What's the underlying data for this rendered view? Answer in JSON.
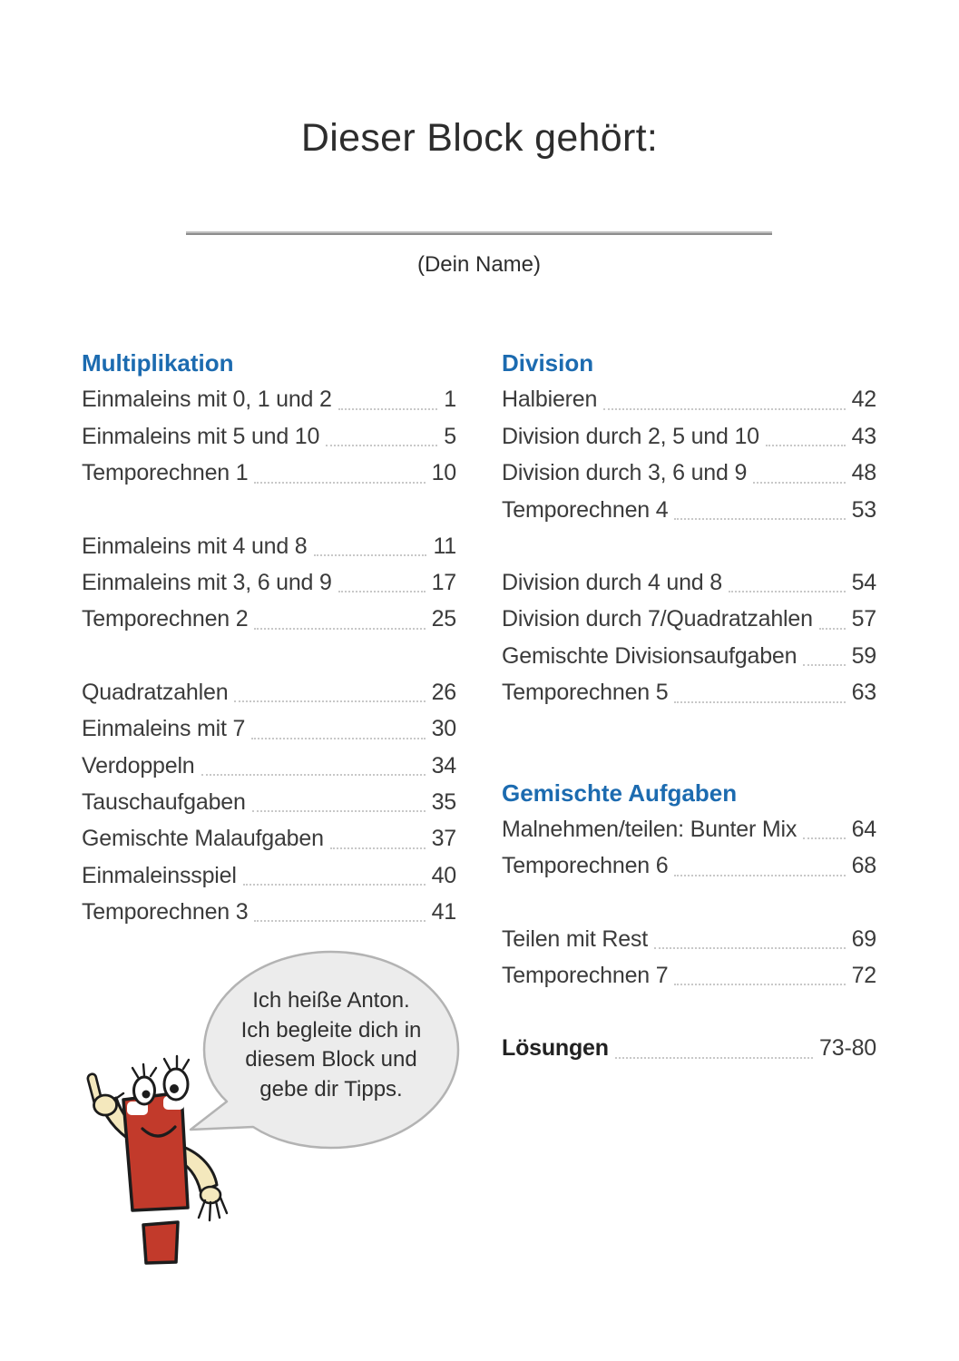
{
  "page": {
    "title": "Dieser Block gehört:",
    "name_caption": "(Dein Name)"
  },
  "toc": {
    "columns": [
      {
        "side": "left",
        "sections": [
          {
            "heading": "Multiplikation",
            "groups": [
              [
                {
                  "label": "Einmaleins mit 0, 1 und 2",
                  "page": "1"
                },
                {
                  "label": "Einmaleins mit 5 und 10",
                  "page": "5"
                },
                {
                  "label": "Temporechnen 1",
                  "page": "10"
                }
              ],
              [
                {
                  "label": "Einmaleins mit 4 und 8",
                  "page": "11"
                },
                {
                  "label": "Einmaleins mit 3, 6 und 9",
                  "page": "17"
                },
                {
                  "label": "Temporechnen 2",
                  "page": "25"
                }
              ],
              [
                {
                  "label": "Quadratzahlen",
                  "page": "26"
                },
                {
                  "label": "Einmaleins mit 7",
                  "page": "30"
                },
                {
                  "label": "Verdoppeln",
                  "page": "34"
                },
                {
                  "label": "Tauschaufgaben",
                  "page": "35"
                },
                {
                  "label": "Gemischte Malaufgaben",
                  "page": "37"
                },
                {
                  "label": "Einmaleinsspiel",
                  "page": "40"
                },
                {
                  "label": "Temporechnen 3",
                  "page": "41"
                }
              ]
            ]
          }
        ]
      },
      {
        "side": "right",
        "sections": [
          {
            "heading": "Division",
            "groups": [
              [
                {
                  "label": "Halbieren",
                  "page": "42"
                },
                {
                  "label": "Division durch 2, 5 und 10",
                  "page": "43"
                },
                {
                  "label": "Division durch 3, 6 und 9",
                  "page": "48"
                },
                {
                  "label": "Temporechnen 4",
                  "page": "53"
                }
              ],
              [
                {
                  "label": "Division durch 4 und 8",
                  "page": "54"
                },
                {
                  "label": "Division durch 7/Quadratzahlen",
                  "page": "57"
                },
                {
                  "label": "Gemischte Divisionsaufgaben",
                  "page": "59"
                },
                {
                  "label": "Temporechnen 5",
                  "page": "63"
                }
              ]
            ]
          },
          {
            "heading": "Gemischte Aufgaben",
            "groups": [
              [
                {
                  "label": "Malnehmen/teilen: Bunter Mix",
                  "page": "64"
                },
                {
                  "label": "Temporechnen 6",
                  "page": "68"
                }
              ],
              [
                {
                  "label": "Teilen mit Rest",
                  "page": "69"
                },
                {
                  "label": "Temporechnen 7",
                  "page": "72"
                }
              ]
            ]
          },
          {
            "heading": null,
            "groups": [
              [
                {
                  "label": "Lösungen",
                  "page": "73-80",
                  "bold": true
                }
              ]
            ]
          }
        ]
      }
    ]
  },
  "mascot": {
    "speech": "Ich heiße Anton.\nIch begleite dich in\ndiesem Block und\ngebe dir Tipps."
  },
  "colors": {
    "heading_blue": "#1c6bb0",
    "text": "#3b3b3b",
    "mascot_red": "#c23a2b",
    "mascot_cream": "#f4e8bd",
    "bubble_fill": "#ececec",
    "bubble_border": "#b3b3b3",
    "leader_dots": "#c8c8c8"
  }
}
